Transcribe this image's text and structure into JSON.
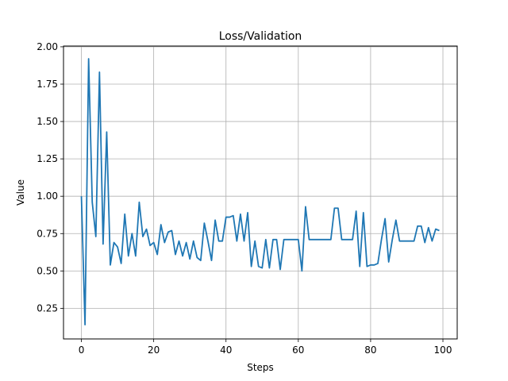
{
  "chart_data": {
    "type": "line",
    "title": "Loss/Validation",
    "xlabel": "Steps",
    "ylabel": "Value",
    "xlim": [
      -4.95,
      103.95
    ],
    "ylim": [
      0.045,
      2.005
    ],
    "grid": true,
    "x_ticks": [
      0,
      20,
      40,
      60,
      80,
      100
    ],
    "y_ticks": [
      0.25,
      0.5,
      0.75,
      1.0,
      1.25,
      1.5,
      1.75,
      2.0
    ],
    "x_tick_labels": [
      "0",
      "20",
      "40",
      "60",
      "80",
      "100"
    ],
    "y_tick_labels": [
      "0.25",
      "0.50",
      "0.75",
      "1.00",
      "1.25",
      "1.50",
      "1.75",
      "2.00"
    ],
    "series_color": "#1f77b4",
    "series": [
      {
        "x": [
          0,
          1,
          2,
          3,
          4,
          5,
          6,
          7,
          8,
          9,
          10,
          11,
          12,
          13,
          14,
          15,
          16,
          17,
          18,
          19,
          20,
          21,
          22,
          23,
          24,
          25,
          26,
          27,
          28,
          29,
          30,
          31,
          32,
          33,
          34,
          35,
          36,
          37,
          38,
          39,
          40,
          41,
          42,
          43,
          44,
          45,
          46,
          47,
          48,
          49,
          50,
          51,
          52,
          53,
          54,
          55,
          56,
          57,
          58,
          59,
          60,
          61,
          62,
          63,
          64,
          65,
          66,
          67,
          68,
          69,
          70,
          71,
          72,
          73,
          74,
          75,
          76,
          77,
          78,
          79,
          80,
          81,
          82,
          83,
          84,
          85,
          86,
          87,
          88,
          89,
          90,
          91,
          92,
          93,
          94,
          95,
          96,
          97,
          98,
          99
        ],
        "values": [
          1.0,
          0.14,
          1.92,
          0.96,
          0.73,
          1.83,
          0.68,
          1.43,
          0.54,
          0.69,
          0.66,
          0.55,
          0.88,
          0.6,
          0.75,
          0.6,
          0.96,
          0.73,
          0.78,
          0.67,
          0.69,
          0.61,
          0.81,
          0.69,
          0.76,
          0.77,
          0.61,
          0.7,
          0.6,
          0.69,
          0.58,
          0.7,
          0.59,
          0.57,
          0.82,
          0.7,
          0.57,
          0.84,
          0.7,
          0.7,
          0.86,
          0.86,
          0.87,
          0.7,
          0.88,
          0.7,
          0.89,
          0.53,
          0.7,
          0.53,
          0.52,
          0.71,
          0.52,
          0.71,
          0.71,
          0.51,
          0.71,
          0.71,
          0.71,
          0.71,
          0.71,
          0.5,
          0.93,
          0.71,
          0.71,
          0.71,
          0.71,
          0.71,
          0.71,
          0.71,
          0.92,
          0.92,
          0.71,
          0.71,
          0.71,
          0.71,
          0.9,
          0.53,
          0.89,
          0.53,
          0.54,
          0.54,
          0.55,
          0.71,
          0.85,
          0.56,
          0.71,
          0.84,
          0.7,
          0.7,
          0.7,
          0.7,
          0.7,
          0.8,
          0.8,
          0.69,
          0.79,
          0.7,
          0.78,
          0.77
        ]
      }
    ]
  }
}
